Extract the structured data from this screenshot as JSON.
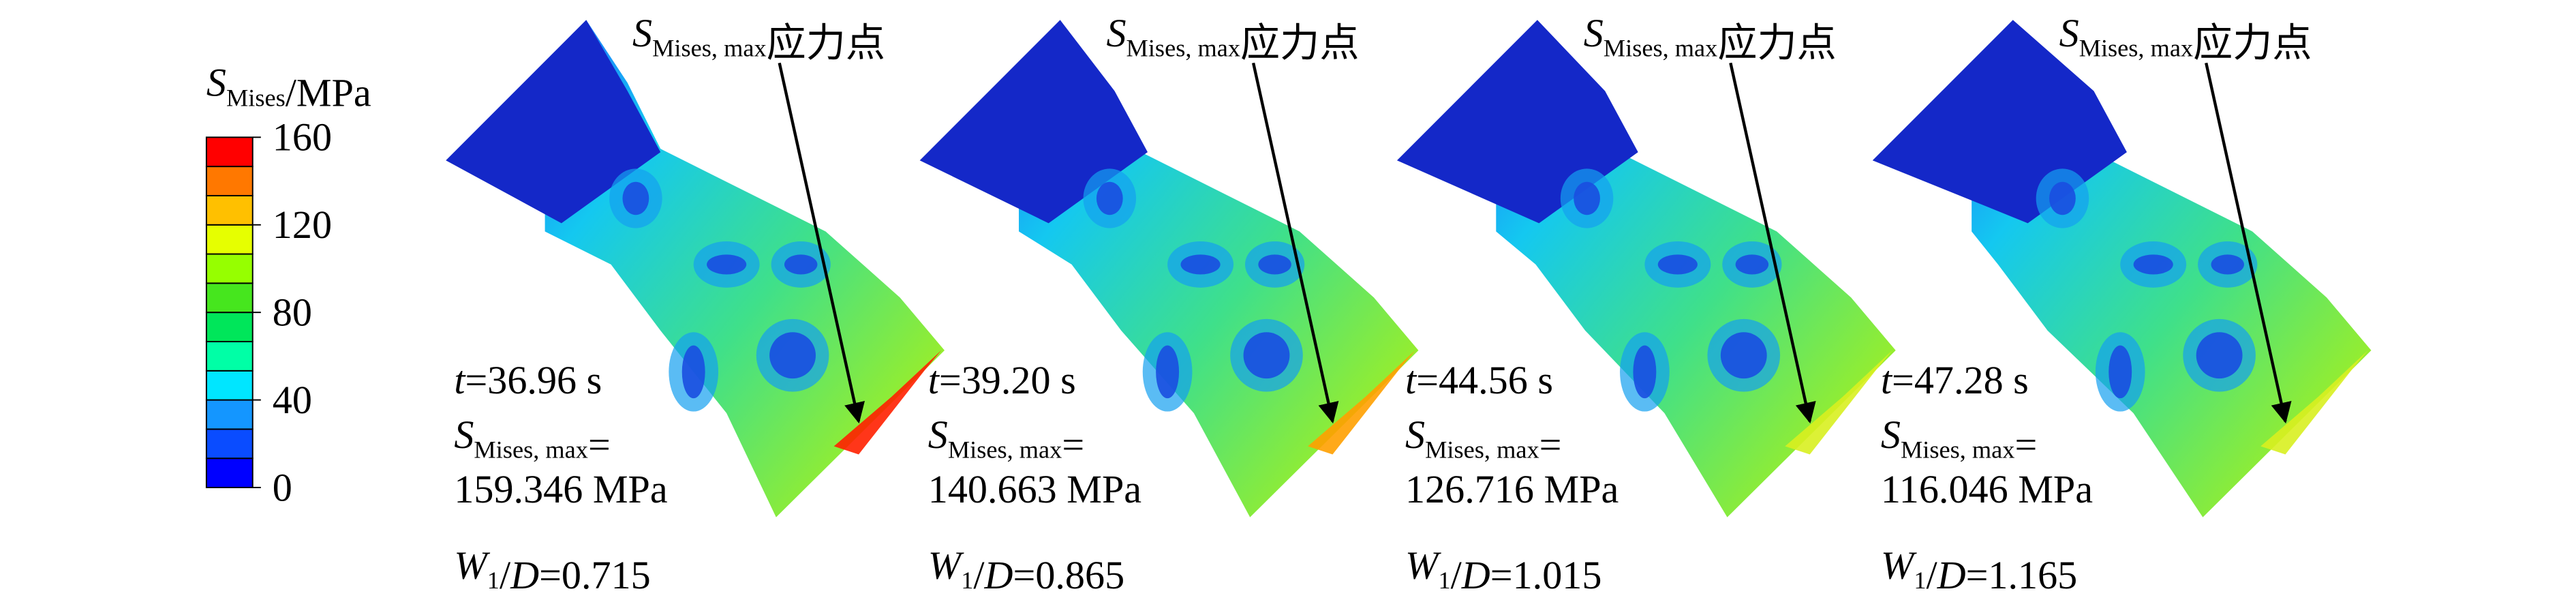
{
  "legend": {
    "title_symbol": "S",
    "title_subscript": "Mises",
    "title_unit": "/MPa",
    "range": [
      0,
      160
    ],
    "ticks": [
      0,
      40,
      80,
      120,
      160
    ],
    "colors": [
      "#0000ff",
      "#0a4cff",
      "#1496ff",
      "#00e6ff",
      "#00ffa6",
      "#00e65a",
      "#46e61e",
      "#96ff00",
      "#e6ff00",
      "#ffc000",
      "#ff7800",
      "#ff0000"
    ]
  },
  "panels": [
    {
      "pointer_symbol": "S",
      "pointer_subscript": "Mises, max",
      "pointer_label": "应力点",
      "time_symbol": "t",
      "time_value": "=36.96 s",
      "stress_symbol": "S",
      "stress_subscript": "Mises, max",
      "stress_eq": "=",
      "stress_value": "159.346 MPa",
      "ratio_symbol": "W",
      "ratio_subscript": "1",
      "ratio_sep": "/",
      "ratio_symbol2": "D",
      "ratio_value": "=0.715"
    },
    {
      "pointer_symbol": "S",
      "pointer_subscript": "Mises, max",
      "pointer_label": "应力点",
      "time_symbol": "t",
      "time_value": "=39.20 s",
      "stress_symbol": "S",
      "stress_subscript": "Mises, max",
      "stress_eq": "=",
      "stress_value": "140.663 MPa",
      "ratio_symbol": "W",
      "ratio_subscript": "1",
      "ratio_sep": "/",
      "ratio_symbol2": "D",
      "ratio_value": "=0.865"
    },
    {
      "pointer_symbol": "S",
      "pointer_subscript": "Mises, max",
      "pointer_label": "应力点",
      "time_symbol": "t",
      "time_value": "=44.56 s",
      "stress_symbol": "S",
      "stress_subscript": "Mises, max",
      "stress_eq": "=",
      "stress_value": "126.716 MPa",
      "ratio_symbol": "W",
      "ratio_subscript": "1",
      "ratio_sep": "/",
      "ratio_symbol2": "D",
      "ratio_value": "=1.015"
    },
    {
      "pointer_symbol": "S",
      "pointer_subscript": "Mises, max",
      "pointer_label": "应力点",
      "time_symbol": "t",
      "time_value": "=47.28 s",
      "stress_symbol": "S",
      "stress_subscript": "Mises, max",
      "stress_eq": "=",
      "stress_value": "116.046 MPa",
      "ratio_symbol": "W",
      "ratio_subscript": "1",
      "ratio_sep": "/",
      "ratio_symbol2": "D",
      "ratio_value": "=1.165"
    }
  ]
}
